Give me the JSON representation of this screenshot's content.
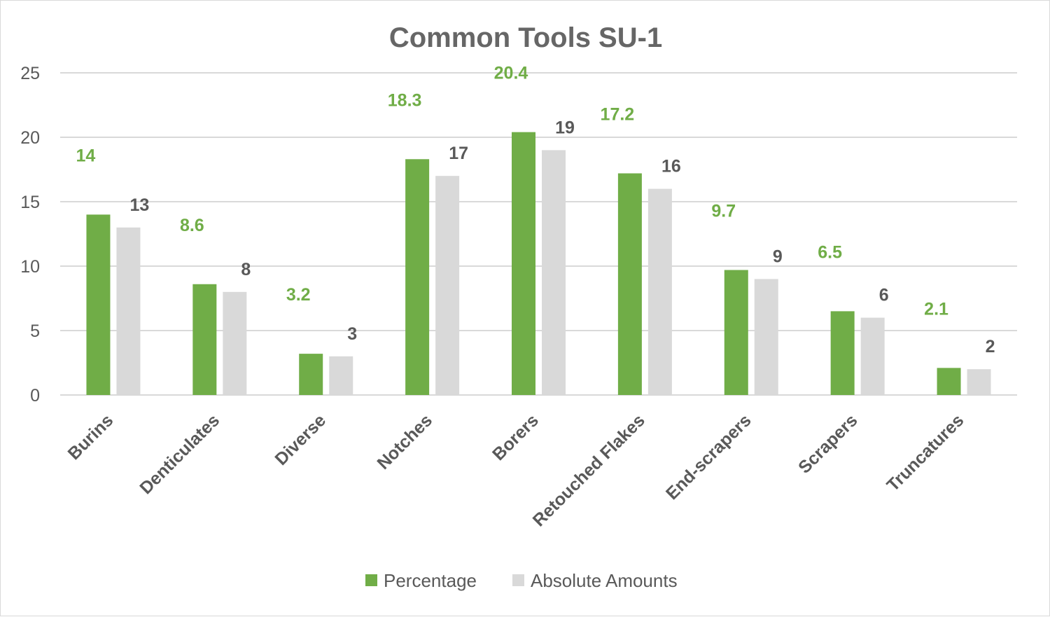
{
  "chart_data": {
    "type": "bar",
    "title": "Common Tools SU-1",
    "xlabel": "",
    "ylabel": "",
    "ylim": [
      0,
      25
    ],
    "yticks": [
      0,
      5,
      10,
      15,
      20,
      25
    ],
    "grid": true,
    "legend_position": "bottom",
    "categories": [
      "Burins",
      "Denticulates",
      "Diverse",
      "Notches",
      "Borers",
      "Retouched Flakes",
      "End-scrapers",
      "Scrapers",
      "Truncatures"
    ],
    "series": [
      {
        "name": "Percentage",
        "color": "#70ad47",
        "label_color": "#70ad47",
        "values": [
          14,
          8.6,
          3.2,
          18.3,
          20.4,
          17.2,
          9.7,
          6.5,
          2.1
        ]
      },
      {
        "name": "Absolute Amounts",
        "color": "#d9d9d9",
        "label_color": "#595959",
        "values": [
          13,
          8,
          3,
          17,
          19,
          16,
          9,
          6,
          2
        ]
      }
    ]
  }
}
